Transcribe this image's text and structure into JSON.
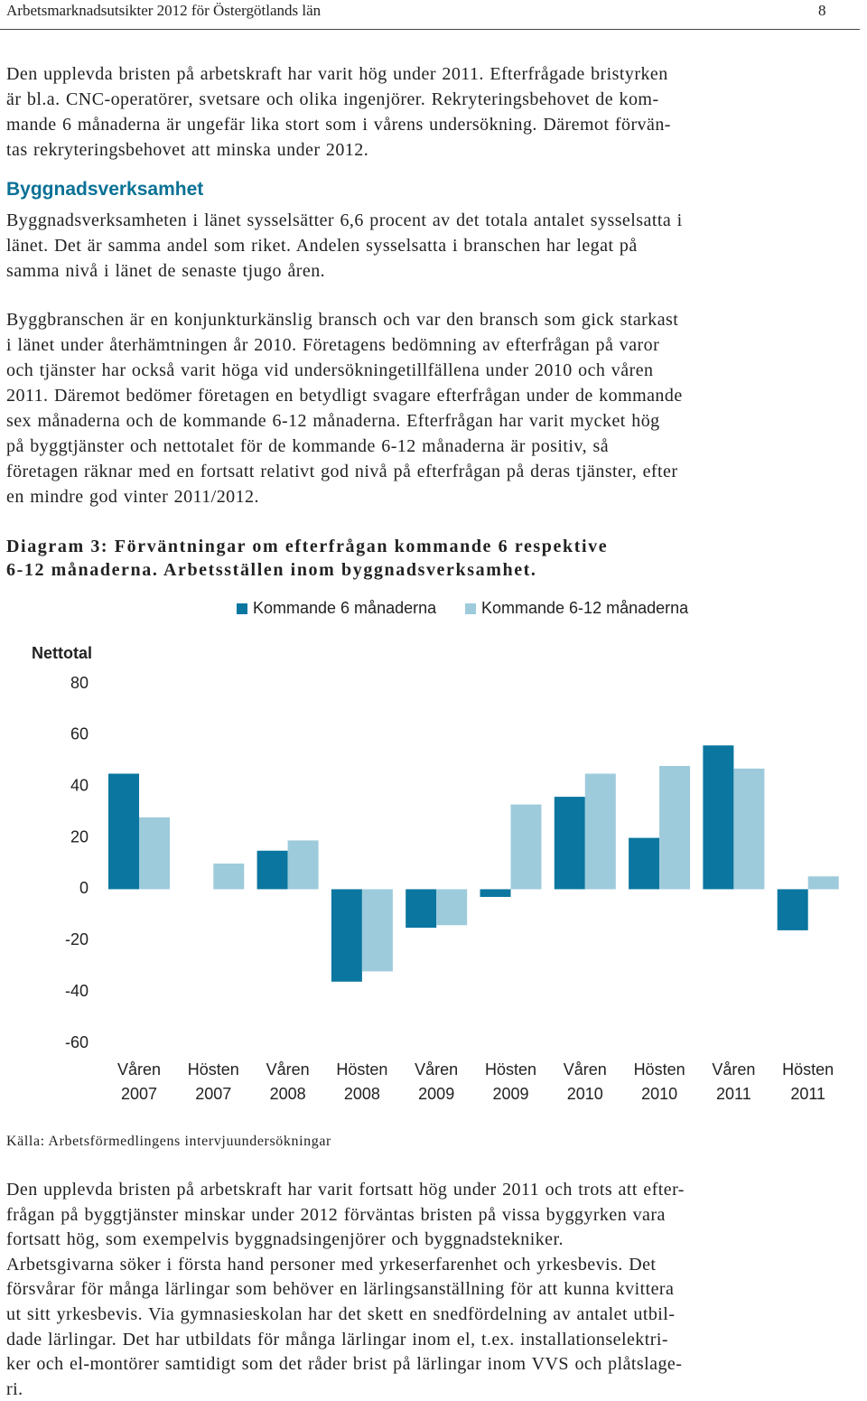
{
  "header": {
    "title": "Arbetsmarknadsutsikter 2012 för Östergötlands län",
    "page": "8"
  },
  "intro": [
    "Den upplevda bristen på arbetskraft har varit hög under 2011. Efterfrågade bristyrken",
    "är bl.a. CNC-operatörer, svetsare och olika ingenjörer. Rekryteringsbehovet de kom-",
    "mande 6 månaderna är ungefär lika stort som i vårens undersökning. Däremot förvän-",
    "tas rekryteringsbehovet att minska under 2012."
  ],
  "heading": "Byggnadsverksamhet",
  "body": [
    [
      "Byggnadsverksamheten i länet sysselsätter 6,6 procent av det totala antalet sysselsatta i",
      "länet. Det är samma andel som riket. Andelen sysselsatta i branschen har legat på",
      "samma nivå i länet de senaste tjugo åren."
    ],
    [
      "Byggbranschen är en konjunkturkänslig bransch och var den bransch som gick starkast",
      "i länet under återhämtningen år 2010. Företagens bedömning av efterfrågan på varor",
      "och tjänster har också varit höga vid undersökningetillfällena under 2010 och våren",
      "2011. Däremot bedömer företagen en betydligt svagare efterfrågan under de kommande",
      "sex månaderna och de kommande 6-12 månaderna. Efterfrågan har varit mycket hög",
      "på byggtjänster och nettotalet för de kommande 6-12 månaderna är positiv, så",
      "företagen räknar med en fortsatt relativt god nivå på efterfrågan på deras tjänster, efter",
      "en mindre god vinter 2011/2012."
    ]
  ],
  "caption": [
    "Diagram 3: Förväntningar om efterfrågan kommande 6 respektive",
    "6-12 månaderna. Arbetsställen inom byggnadsverksamhet."
  ],
  "chart_data": {
    "type": "bar",
    "y_label": "Nettotal",
    "categories": [
      "Våren 2007",
      "Hösten 2007",
      "Våren 2008",
      "Hösten 2008",
      "Våren 2009",
      "Hösten 2009",
      "Våren 2010",
      "Hösten 2010",
      "Våren 2011",
      "Hösten 2011"
    ],
    "series": [
      {
        "name": "Kommande 6 månaderna",
        "color": "#0b76a0",
        "values": [
          45,
          0,
          15,
          -36,
          -15,
          -3,
          36,
          20,
          56,
          -16
        ]
      },
      {
        "name": "Kommande 6-12 månaderna",
        "color": "#9dcbdb",
        "values": [
          28,
          10,
          19,
          -32,
          -14,
          33,
          45,
          48,
          47,
          5
        ]
      }
    ],
    "ylim": [
      -60,
      80
    ],
    "yticks": [
      80,
      60,
      40,
      20,
      0,
      -20,
      -40,
      -60
    ],
    "grid": false
  },
  "source": "Källa: Arbetsförmedlingens intervjuundersökningar",
  "conclusion": [
    "Den upplevda bristen på arbetskraft har varit fortsatt hög under 2011 och trots att efter-",
    "frågan på byggtjänster minskar under 2012 förväntas bristen på vissa byggyrken vara",
    "fortsatt hög, som exempelvis byggnadsingenjörer och byggnadstekniker.",
    "Arbetsgivarna söker i första hand personer med yrkeserfarenhet och yrkesbevis. Det",
    "försvårar för många lärlingar som behöver en lärlingsanställning för att kunna kvittera",
    "ut sitt yrkesbevis. Via gymnasieskolan har det skett en snedfördelning av antalet utbil-",
    "dade lärlingar. Det har utbildats för många lärlingar inom el, t.ex. installationselektri-",
    "ker och el-montörer samtidigt som det råder brist på lärlingar inom VVS och plåtslage-",
    "ri."
  ]
}
